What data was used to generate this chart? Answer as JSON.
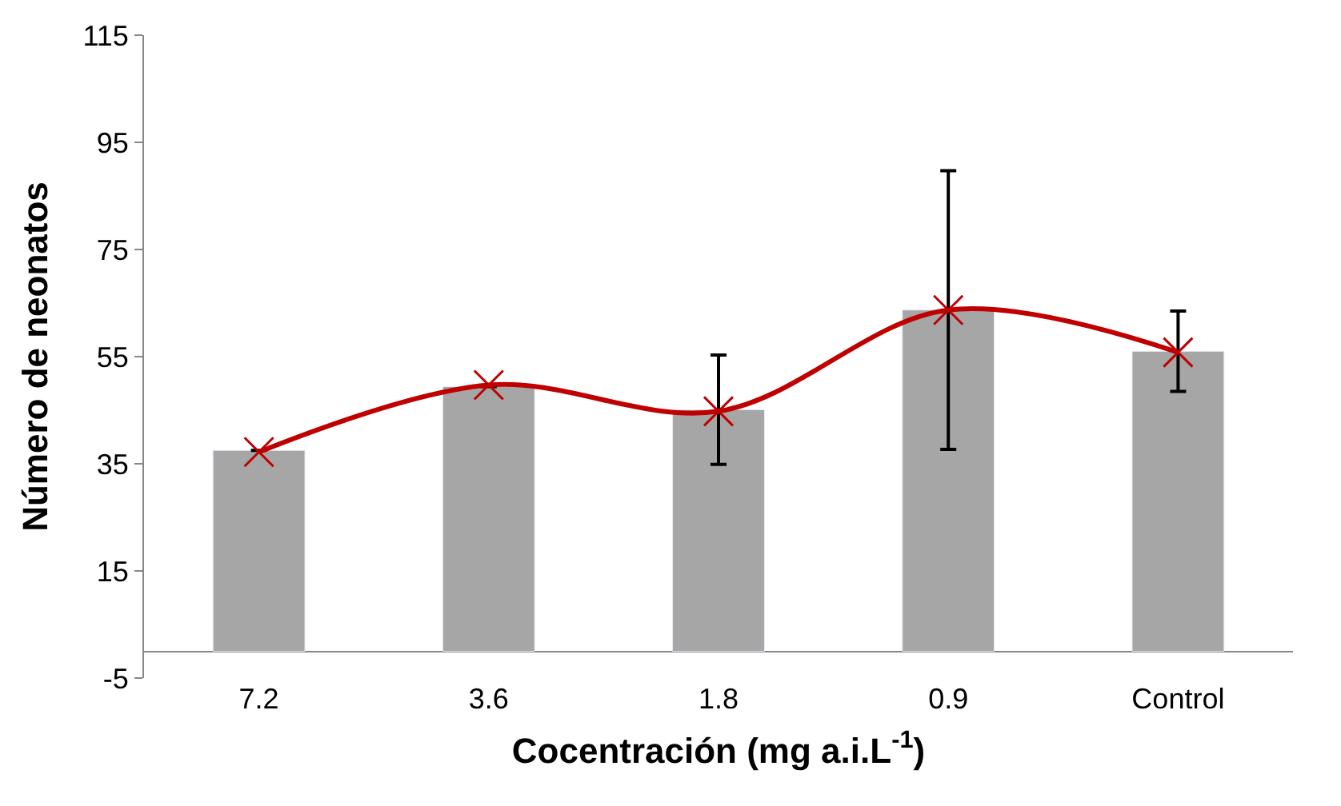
{
  "chart_data": {
    "type": "bar",
    "xlabel": "Cocentración (mg a.i.L$^{-1}$)",
    "ylabel": "Número de neonatos",
    "categories": [
      "7.2",
      "3.6",
      "1.8",
      "0.9",
      "Control"
    ],
    "series": [
      {
        "color": "#a6a6a6",
        "values": [
          37.5,
          49.4,
          45.1,
          63.7,
          56
        ],
        "errors": [
          null,
          null,
          10.2,
          26,
          7.5
        ]
      },
      {
        "type": "line",
        "color": "#c00000",
        "values": [
          37.2,
          49.7,
          44.8,
          63.7,
          55.8
        ],
        "marker": "cross"
      }
    ],
    "ylim": [
      -5,
      115
    ],
    "yticks": [
      -5,
      15,
      35,
      55,
      75,
      95,
      115
    ]
  }
}
